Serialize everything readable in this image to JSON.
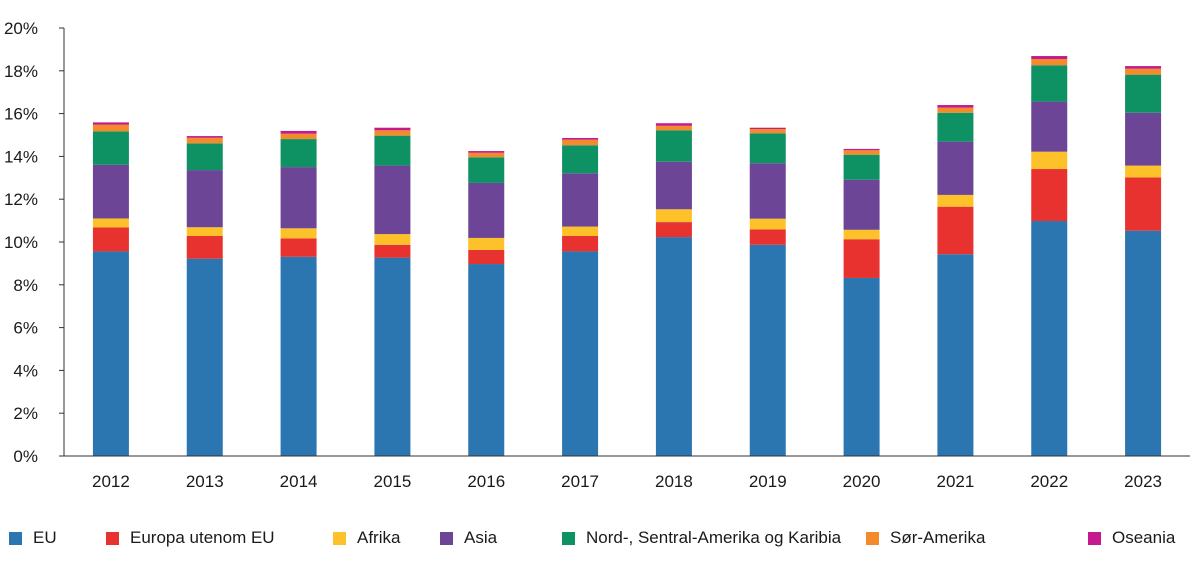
{
  "chart_data": {
    "type": "bar",
    "stacked": true,
    "categories": [
      "2012",
      "2013",
      "2014",
      "2015",
      "2016",
      "2017",
      "2018",
      "2019",
      "2020",
      "2021",
      "2022",
      "2023"
    ],
    "ylim": [
      0,
      20
    ],
    "yticks": [
      "0%",
      "2%",
      "4%",
      "6%",
      "8%",
      "10%",
      "12%",
      "14%",
      "16%",
      "18%",
      "20%"
    ],
    "ytick_values": [
      0,
      2,
      4,
      6,
      8,
      10,
      12,
      14,
      16,
      18,
      20
    ],
    "grid": false,
    "legend_position": "bottom",
    "series": [
      {
        "name": "EU",
        "color": "#2b75b1",
        "values": [
          9.56,
          9.22,
          9.31,
          9.27,
          8.97,
          9.56,
          10.23,
          9.87,
          8.32,
          9.43,
          10.98,
          10.53
        ]
      },
      {
        "name": "Europa utenom EU",
        "color": "#e8322f",
        "values": [
          1.12,
          1.06,
          0.86,
          0.6,
          0.66,
          0.72,
          0.7,
          0.72,
          1.81,
          2.22,
          2.43,
          2.49
        ]
      },
      {
        "name": "Afrika",
        "color": "#fdc22a",
        "values": [
          0.42,
          0.41,
          0.47,
          0.5,
          0.56,
          0.44,
          0.6,
          0.5,
          0.44,
          0.55,
          0.81,
          0.55
        ]
      },
      {
        "name": "Asia",
        "color": "#6c4597",
        "values": [
          2.51,
          2.67,
          2.86,
          3.2,
          2.57,
          2.49,
          2.22,
          2.59,
          2.34,
          2.49,
          2.34,
          2.47
        ]
      },
      {
        "name": "Nord-, Sentral-Amerika og Karibia",
        "color": "#0e9264",
        "values": [
          1.56,
          1.25,
          1.31,
          1.4,
          1.2,
          1.31,
          1.47,
          1.4,
          1.17,
          1.35,
          1.7,
          1.78
        ]
      },
      {
        "name": "Sør-Amerika",
        "color": "#f38b2b",
        "values": [
          0.31,
          0.26,
          0.25,
          0.25,
          0.21,
          0.26,
          0.21,
          0.2,
          0.21,
          0.24,
          0.29,
          0.28
        ]
      },
      {
        "name": "Oseania",
        "color": "#c41a8d",
        "values": [
          0.11,
          0.08,
          0.13,
          0.12,
          0.08,
          0.08,
          0.12,
          0.06,
          0.06,
          0.12,
          0.14,
          0.12
        ]
      }
    ]
  }
}
